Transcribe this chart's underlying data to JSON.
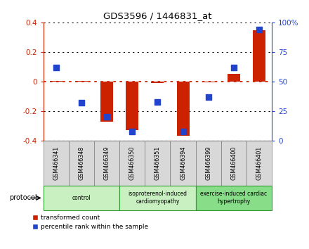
{
  "title": "GDS3596 / 1446831_at",
  "samples": [
    "GSM466341",
    "GSM466348",
    "GSM466349",
    "GSM466350",
    "GSM466351",
    "GSM466394",
    "GSM466399",
    "GSM466400",
    "GSM466401"
  ],
  "red_values": [
    0.005,
    0.005,
    -0.27,
    -0.33,
    -0.01,
    -0.365,
    -0.005,
    0.05,
    0.345
  ],
  "blue_values": [
    62,
    32,
    20,
    8,
    33,
    8,
    37,
    62,
    94
  ],
  "ylim_left": [
    -0.4,
    0.4
  ],
  "ylim_right": [
    0,
    100
  ],
  "yticks_left": [
    -0.4,
    -0.2,
    0.0,
    0.2,
    0.4
  ],
  "yticks_right": [
    0,
    25,
    50,
    75,
    100
  ],
  "ytick_labels_right": [
    "0",
    "25",
    "50",
    "75",
    "100%"
  ],
  "ytick_labels_left": [
    "-0.4",
    "-0.2",
    "0",
    "0.2",
    "0.4"
  ],
  "group_spans": [
    [
      0,
      2,
      "control",
      "#c8f0c0"
    ],
    [
      3,
      5,
      "isoproterenol-induced\ncardiomyopathy",
      "#c8f0c0"
    ],
    [
      6,
      8,
      "exercise-induced cardiac\nhypertrophy",
      "#88dd88"
    ]
  ],
  "protocol_label": "protocol",
  "legend_red": "transformed count",
  "legend_blue": "percentile rank within the sample",
  "red_color": "#cc2200",
  "blue_color": "#2244cc",
  "bar_width": 0.5,
  "dotted_line_color_red": "#cc2200",
  "dotted_line_color_black": "#000000",
  "sample_box_color": "#d8d8d8",
  "sample_box_edge": "#888888",
  "group_edge_color": "#339933",
  "background_color": "#ffffff"
}
